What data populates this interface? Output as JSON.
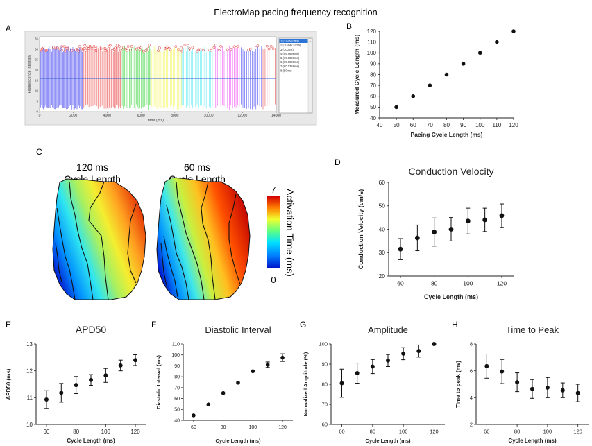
{
  "figure": {
    "title": "ElectroMap pacing frequency recognition",
    "panel_letters": [
      "A",
      "B",
      "C",
      "D",
      "E",
      "F",
      "G",
      "H"
    ]
  },
  "panel_a": {
    "xlabel": "time (ms) →",
    "ylabel": "Fluorescence Intensity",
    "xticks": [
      "0",
      "2000",
      "4000",
      "6000",
      "8000",
      "10000",
      "12000",
      "14000"
    ],
    "yticks": [
      "0",
      "5",
      "10",
      "15",
      "20",
      "25",
      "30",
      "35"
    ],
    "list_items": [
      "1 (119.503ms)",
      "2 (109.4732ms)",
      "3 (100ms)",
      "4 (89.9696ms)",
      "5 (79.9899ms)",
      "6 (69.9696ms)",
      "7 (60.0356ms)",
      "8 (50ms)"
    ],
    "segment_colors": [
      "#2d2df0",
      "#e83030",
      "#2fd12f",
      "#f5f542",
      "#3de8f0",
      "#f03cf0",
      "#2d2df0",
      "#e83030"
    ]
  },
  "panel_c": {
    "map_titles": [
      "120 ms\nCycle Length",
      "60 ms\nCycle Length"
    ],
    "colorbar_max": "7",
    "colorbar_min": "0",
    "colorbar_label": "Activation Time (ms)"
  },
  "chart_data": [
    {
      "id": "B",
      "type": "scatter",
      "title": "",
      "xlabel": "Pacing Cycle Length (ms)",
      "ylabel": "Measured Cycle Length (ms)",
      "x": [
        50,
        60,
        70,
        80,
        90,
        100,
        110,
        120
      ],
      "y": [
        50,
        60,
        70,
        80,
        90,
        100,
        110,
        120
      ],
      "xlim": [
        40,
        120
      ],
      "ylim": [
        40,
        120
      ],
      "xticks": [
        40,
        50,
        60,
        70,
        80,
        90,
        100,
        110,
        120
      ],
      "yticks": [
        40,
        50,
        60,
        70,
        80,
        90,
        100,
        110,
        120
      ]
    },
    {
      "id": "D",
      "type": "scatter",
      "title": "Conduction Velocity",
      "xlabel": "Cycle Length (ms)",
      "ylabel": "Conduction Velocity (cm/s)",
      "x": [
        60,
        70,
        80,
        90,
        100,
        110,
        120
      ],
      "y": [
        31.5,
        36.3,
        38.8,
        40.0,
        43.5,
        44.0,
        45.8
      ],
      "err": [
        4.5,
        5.5,
        6.0,
        5.0,
        5.5,
        5.0,
        5.0
      ],
      "xlim": [
        53,
        127
      ],
      "ylim": [
        20,
        60
      ],
      "xticks": [
        60,
        80,
        100,
        120
      ],
      "yticks": [
        20,
        30,
        40,
        50,
        60
      ]
    },
    {
      "id": "E",
      "type": "scatter",
      "title": "APD50",
      "xlabel": "Cycle Length (ms)",
      "ylabel": "APD50 (ms)",
      "x": [
        60,
        70,
        80,
        90,
        100,
        110,
        120
      ],
      "y": [
        10.93,
        11.18,
        11.47,
        11.66,
        11.83,
        12.2,
        12.4
      ],
      "err": [
        0.33,
        0.35,
        0.32,
        0.2,
        0.26,
        0.2,
        0.2
      ],
      "xlim": [
        53,
        127
      ],
      "ylim": [
        10,
        13
      ],
      "xticks": [
        60,
        80,
        100,
        120
      ],
      "yticks": [
        10,
        11,
        12,
        13
      ]
    },
    {
      "id": "F",
      "type": "scatter",
      "title": "Diastolic Interval",
      "xlabel": "Cycle Length (ms)",
      "ylabel": "Diastolic Interval (ms)",
      "x": [
        60,
        70,
        80,
        90,
        100,
        110,
        120
      ],
      "y": [
        44.5,
        54.5,
        65.0,
        74.5,
        85.0,
        91.0,
        97.5
      ],
      "err": [
        0,
        0,
        0,
        0,
        0,
        2.5,
        3.5
      ],
      "xlim": [
        53,
        127
      ],
      "ylim": [
        40,
        110
      ],
      "xticks": [
        60,
        80,
        100,
        120
      ],
      "yticks": [
        40,
        50,
        60,
        70,
        80,
        90,
        100,
        110
      ]
    },
    {
      "id": "G",
      "type": "scatter",
      "title": "Amplitude",
      "xlabel": "Cycle Length (ms)",
      "ylabel": "Normalized Amplitude (%)",
      "x": [
        60,
        70,
        80,
        90,
        100,
        110,
        120
      ],
      "y": [
        80.5,
        85.5,
        88.8,
        91.8,
        95.2,
        96.5,
        100
      ],
      "err": [
        7.0,
        5.0,
        3.5,
        3.0,
        3.0,
        3.0,
        0
      ],
      "xlim": [
        53,
        127
      ],
      "ylim": [
        60,
        100
      ],
      "xticks": [
        60,
        80,
        100,
        120
      ],
      "yticks": [
        60,
        70,
        80,
        90,
        100
      ]
    },
    {
      "id": "H",
      "type": "scatter",
      "title": "Time to Peak",
      "xlabel": "Cycle Length (ms)",
      "ylabel": "Time to peak (ms)",
      "x": [
        60,
        70,
        80,
        90,
        100,
        110,
        120
      ],
      "y": [
        6.35,
        5.95,
        5.15,
        4.65,
        4.75,
        4.55,
        4.35
      ],
      "err": [
        0.9,
        0.9,
        0.7,
        0.7,
        0.75,
        0.55,
        0.65
      ],
      "xlim": [
        53,
        127
      ],
      "ylim": [
        2,
        8
      ],
      "xticks": [
        60,
        80,
        100,
        120
      ],
      "yticks": [
        2,
        4,
        6,
        8
      ]
    }
  ]
}
